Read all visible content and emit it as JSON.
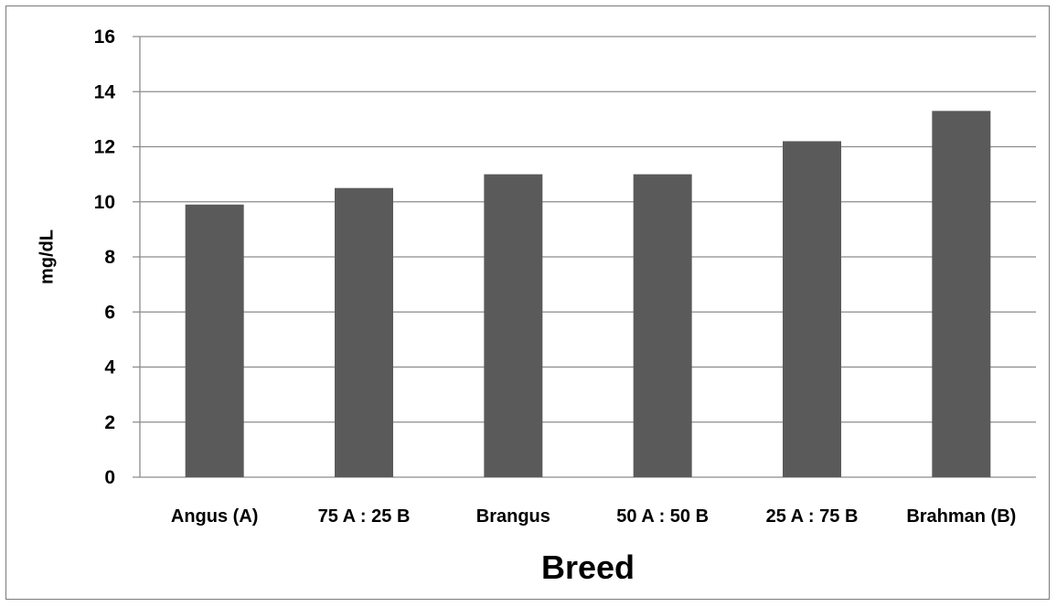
{
  "chart_data": {
    "type": "bar",
    "categories": [
      "Angus (A)",
      "75 A : 25 B",
      "Brangus",
      "50 A : 50 B",
      "25 A : 75 B",
      "Brahman (B)"
    ],
    "values": [
      9.9,
      10.5,
      11.0,
      11.0,
      12.2,
      13.3
    ],
    "title": "",
    "xlabel": "Breed",
    "ylabel": "mg/dL",
    "ylim": [
      0,
      16
    ],
    "yticks": [
      0,
      2,
      4,
      6,
      8,
      10,
      12,
      14,
      16
    ],
    "grid": true,
    "legend": "none",
    "bar_color": "#5a5a5a",
    "grid_color": "#8c8c8c"
  }
}
